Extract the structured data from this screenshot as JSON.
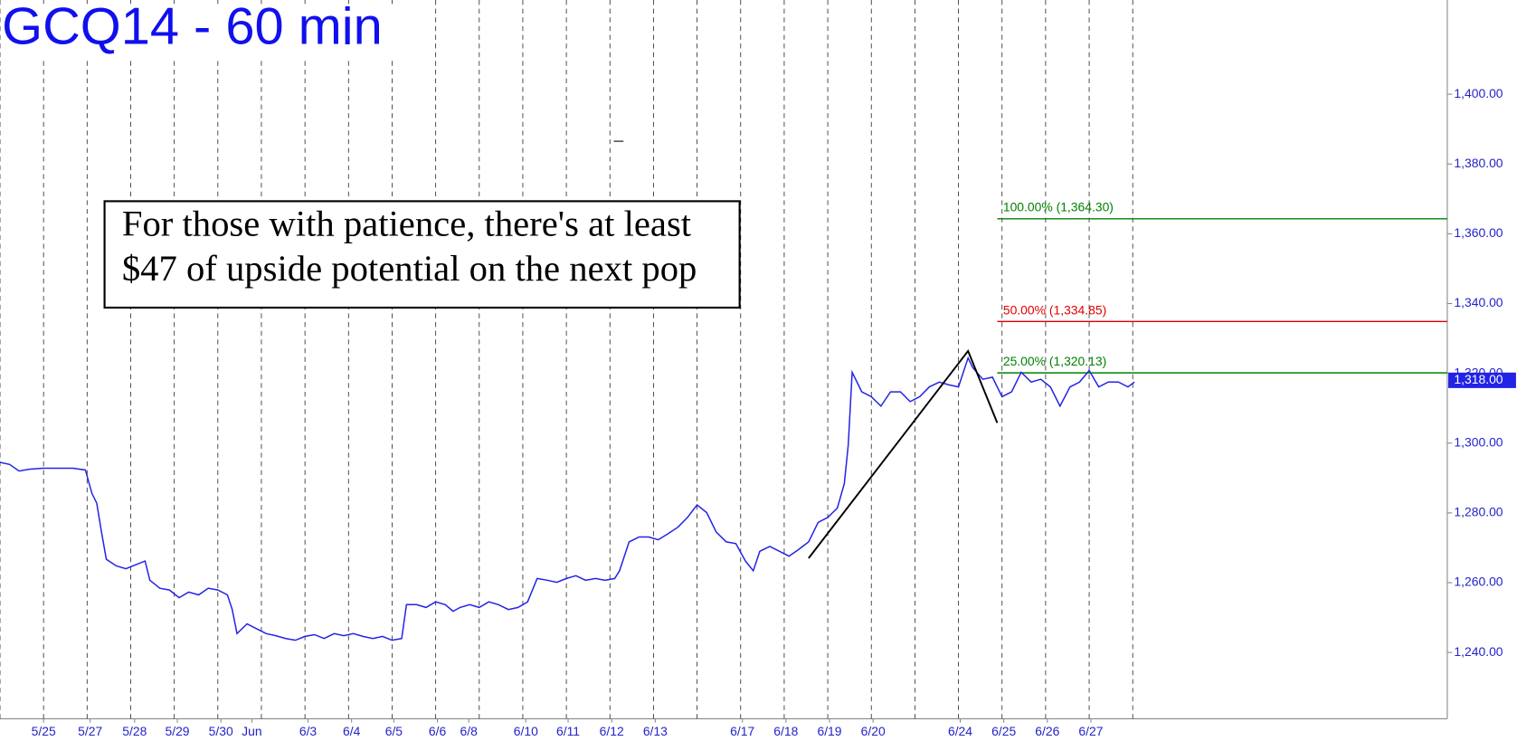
{
  "chart_data": {
    "type": "line",
    "title": "GCQ14 - 60 min",
    "color": "#2323e6",
    "xlim": [
      0,
      33.22
    ],
    "ylim": [
      1221,
      1427
    ],
    "xgrid": true,
    "yticks": [
      {
        "value": 1240,
        "label": "1,240.00"
      },
      {
        "value": 1260,
        "label": "1,260.00"
      },
      {
        "value": 1280,
        "label": "1,280.00"
      },
      {
        "value": 1300,
        "label": "1,300.00"
      },
      {
        "value": 1320,
        "label": "1,320.00"
      },
      {
        "value": 1340,
        "label": "1,340.00"
      },
      {
        "value": 1360,
        "label": "1,360.00"
      },
      {
        "value": 1380,
        "label": "1,380.00"
      },
      {
        "value": 1400,
        "label": "1,400.00"
      }
    ],
    "xticks": [
      {
        "value": 1.0,
        "label": "5/25"
      },
      {
        "value": 2.07,
        "label": "5/27"
      },
      {
        "value": 3.09,
        "label": "5/28"
      },
      {
        "value": 4.07,
        "label": "5/29"
      },
      {
        "value": 5.07,
        "label": "5/30"
      },
      {
        "value": 5.78,
        "label": "Jun"
      },
      {
        "value": 7.07,
        "label": "6/3"
      },
      {
        "value": 8.07,
        "label": "6/4"
      },
      {
        "value": 9.04,
        "label": "6/5"
      },
      {
        "value": 10.04,
        "label": "6/6"
      },
      {
        "value": 10.76,
        "label": "6/8"
      },
      {
        "value": 12.07,
        "label": "6/10"
      },
      {
        "value": 13.04,
        "label": "6/11"
      },
      {
        "value": 14.04,
        "label": "6/12"
      },
      {
        "value": 15.04,
        "label": "6/13"
      },
      {
        "value": 17.04,
        "label": "6/17"
      },
      {
        "value": 18.04,
        "label": "6/18"
      },
      {
        "value": 19.04,
        "label": "6/19"
      },
      {
        "value": 20.04,
        "label": "6/20"
      },
      {
        "value": 22.04,
        "label": "6/24"
      },
      {
        "value": 23.04,
        "label": "6/25"
      },
      {
        "value": 24.04,
        "label": "6/26"
      },
      {
        "value": 25.04,
        "label": "6/27"
      }
    ],
    "x": [
      0,
      0.22,
      0.44,
      0.67,
      1,
      1.33,
      1.67,
      1.96,
      2.11,
      2.22,
      2.33,
      2.44,
      2.67,
      2.89,
      3.11,
      3.33,
      3.44,
      3.67,
      3.89,
      4.11,
      4.33,
      4.56,
      4.78,
      5,
      5.22,
      5.33,
      5.44,
      5.67,
      5.89,
      6.11,
      6.33,
      6.56,
      6.78,
      7,
      7.22,
      7.44,
      7.67,
      7.89,
      8.11,
      8.33,
      8.56,
      8.78,
      9,
      9.22,
      9.33,
      9.56,
      9.78,
      10,
      10.22,
      10.4,
      10.56,
      10.78,
      11,
      11.22,
      11.44,
      11.67,
      11.89,
      12.11,
      12.33,
      12.56,
      12.78,
      13,
      13.22,
      13.44,
      13.67,
      13.89,
      14.11,
      14.22,
      14.44,
      14.67,
      14.89,
      15.11,
      15.33,
      15.56,
      15.78,
      16,
      16.22,
      16.44,
      16.67,
      16.89,
      17.11,
      17.29,
      17.44,
      17.67,
      17.89,
      18.11,
      18.33,
      18.56,
      18.78,
      19,
      19.22,
      19.38,
      19.47,
      19.56,
      19.67,
      19.78,
      20,
      20.22,
      20.44,
      20.67,
      20.89,
      21.11,
      21.33,
      21.56,
      21.78,
      22,
      22.22,
      22.33,
      22.56,
      22.78,
      23,
      23.22,
      23.44,
      23.67,
      23.89,
      24.11,
      24.33,
      24.56,
      24.78,
      25,
      25.22,
      25.44,
      25.67,
      25.89,
      26.04
    ],
    "values": [
      1294.5,
      1293.9,
      1292.0,
      1292.5,
      1292.8,
      1292.8,
      1292.8,
      1292.3,
      1285.6,
      1282.8,
      1274.5,
      1266.7,
      1264.8,
      1264.0,
      1265.1,
      1266.2,
      1260.7,
      1258.4,
      1257.9,
      1255.7,
      1257.3,
      1256.5,
      1258.4,
      1257.9,
      1256.5,
      1252.3,
      1245.4,
      1248.2,
      1246.8,
      1245.4,
      1244.8,
      1244.0,
      1243.5,
      1244.6,
      1245.1,
      1244.0,
      1245.4,
      1244.8,
      1245.4,
      1244.6,
      1244.0,
      1244.6,
      1243.5,
      1244.0,
      1253.7,
      1253.7,
      1252.9,
      1254.5,
      1253.7,
      1251.8,
      1252.9,
      1253.7,
      1252.9,
      1254.5,
      1253.7,
      1252.3,
      1252.9,
      1254.5,
      1261.2,
      1260.7,
      1260.1,
      1261.2,
      1262.0,
      1260.7,
      1261.2,
      1260.7,
      1261.2,
      1263.4,
      1271.7,
      1273.1,
      1273.1,
      1272.3,
      1274.0,
      1275.9,
      1278.7,
      1282.3,
      1280.1,
      1274.5,
      1271.7,
      1271.2,
      1266.2,
      1263.4,
      1269.0,
      1270.4,
      1269.0,
      1267.6,
      1269.5,
      1271.7,
      1277.3,
      1278.7,
      1281.4,
      1288.4,
      1299.5,
      1320.3,
      1317.5,
      1314.7,
      1313.3,
      1310.6,
      1314.7,
      1314.7,
      1311.9,
      1313.3,
      1316.1,
      1317.5,
      1316.7,
      1316.1,
      1324.4,
      1321.6,
      1318.3,
      1318.9,
      1313.3,
      1314.7,
      1320.3,
      1317.5,
      1318.3,
      1316.1,
      1310.6,
      1316.1,
      1317.5,
      1320.8,
      1316.1,
      1317.5,
      1317.5,
      1316.1,
      1317.5
    ],
    "last_price": {
      "value": 1318,
      "label": "1,318.00"
    },
    "fib_levels": [
      {
        "label": "100.00% (1,364.30)",
        "value": 1364.3,
        "color": "#008000",
        "x_start": 22.89
      },
      {
        "label": "50.00% (1,334.85)",
        "value": 1334.85,
        "color": "#e00000",
        "x_start": 22.89
      },
      {
        "label": "25.00% (1,320.13)",
        "value": 1320.13,
        "color": "#008000",
        "x_start": 22.89
      }
    ],
    "pattern_line": {
      "x": [
        18.56,
        22.22,
        22.89
      ],
      "values": [
        1267.0,
        1326.4,
        1305.8
      ],
      "color": "#000000"
    },
    "annotation": {
      "lines": [
        "For those with patience, there's at least",
        "$47 of upside potential on the next pop"
      ]
    }
  }
}
